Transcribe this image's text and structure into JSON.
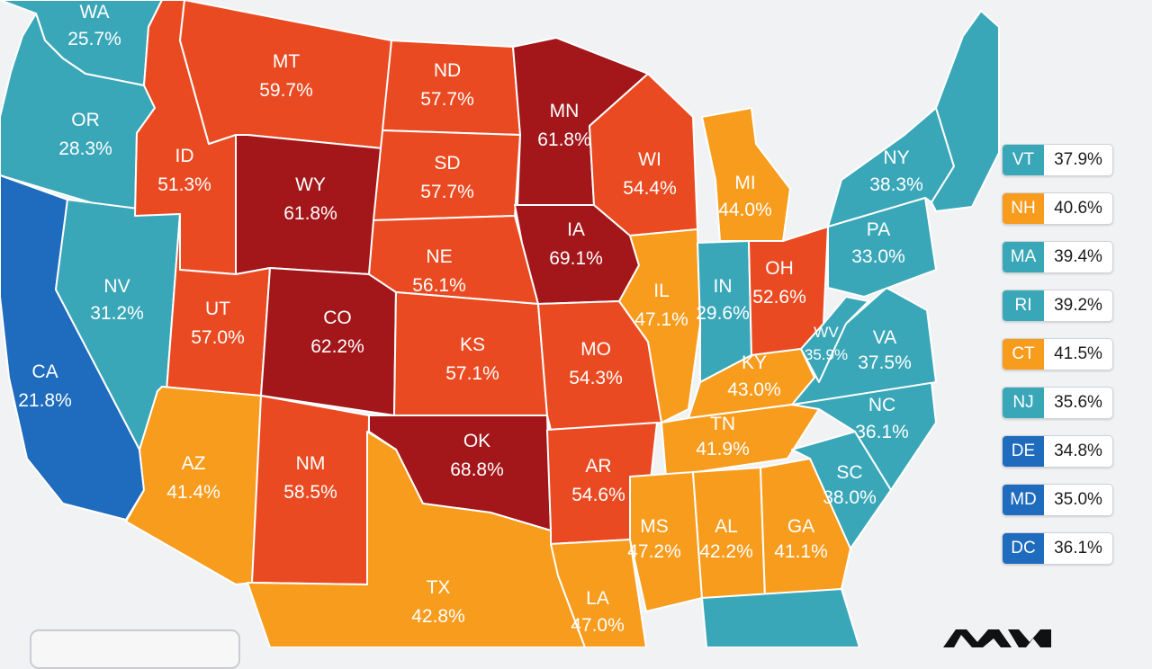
{
  "colors": {
    "dark_red": "#a3161a",
    "red_orange": "#ea4a22",
    "orange": "#f89c1e",
    "teal": "#3aa7b9",
    "blue": "#1f6bbd"
  },
  "states": [
    {
      "code": "WA",
      "value": "25.7%",
      "color": "#3aa7b9"
    },
    {
      "code": "OR",
      "value": "28.3%",
      "color": "#3aa7b9"
    },
    {
      "code": "CA",
      "value": "21.8%",
      "color": "#1f6bbd"
    },
    {
      "code": "NV",
      "value": "31.2%",
      "color": "#3aa7b9"
    },
    {
      "code": "ID",
      "value": "51.3%",
      "color": "#ea4a22"
    },
    {
      "code": "MT",
      "value": "59.7%",
      "color": "#ea4a22"
    },
    {
      "code": "WY",
      "value": "61.8%",
      "color": "#a3161a"
    },
    {
      "code": "UT",
      "value": "57.0%",
      "color": "#ea4a22"
    },
    {
      "code": "CO",
      "value": "62.2%",
      "color": "#a3161a"
    },
    {
      "code": "AZ",
      "value": "41.4%",
      "color": "#f89c1e"
    },
    {
      "code": "NM",
      "value": "58.5%",
      "color": "#ea4a22"
    },
    {
      "code": "ND",
      "value": "57.7%",
      "color": "#ea4a22"
    },
    {
      "code": "SD",
      "value": "57.7%",
      "color": "#ea4a22"
    },
    {
      "code": "NE",
      "value": "56.1%",
      "color": "#ea4a22"
    },
    {
      "code": "KS",
      "value": "57.1%",
      "color": "#ea4a22"
    },
    {
      "code": "OK",
      "value": "68.8%",
      "color": "#a3161a"
    },
    {
      "code": "TX",
      "value": "42.8%",
      "color": "#f89c1e"
    },
    {
      "code": "MN",
      "value": "61.8%",
      "color": "#a3161a"
    },
    {
      "code": "IA",
      "value": "69.1%",
      "color": "#a3161a"
    },
    {
      "code": "MO",
      "value": "54.3%",
      "color": "#ea4a22"
    },
    {
      "code": "AR",
      "value": "54.6%",
      "color": "#ea4a22"
    },
    {
      "code": "LA",
      "value": "47.0%",
      "color": "#f89c1e"
    },
    {
      "code": "WI",
      "value": "54.4%",
      "color": "#ea4a22"
    },
    {
      "code": "IL",
      "value": "47.1%",
      "color": "#f89c1e"
    },
    {
      "code": "MI",
      "value": "44.0%",
      "color": "#f89c1e"
    },
    {
      "code": "IN",
      "value": "29.6%",
      "color": "#3aa7b9"
    },
    {
      "code": "OH",
      "value": "52.6%",
      "color": "#ea4a22"
    },
    {
      "code": "KY",
      "value": "43.0%",
      "color": "#f89c1e"
    },
    {
      "code": "TN",
      "value": "41.9%",
      "color": "#f89c1e"
    },
    {
      "code": "MS",
      "value": "47.2%",
      "color": "#f89c1e"
    },
    {
      "code": "AL",
      "value": "42.2%",
      "color": "#f89c1e"
    },
    {
      "code": "GA",
      "value": "41.1%",
      "color": "#f89c1e"
    },
    {
      "code": "FL",
      "value": "",
      "color": "#3aa7b9"
    },
    {
      "code": "SC",
      "value": "38.0%",
      "color": "#3aa7b9"
    },
    {
      "code": "NC",
      "value": "36.1%",
      "color": "#3aa7b9"
    },
    {
      "code": "VA",
      "value": "37.5%",
      "color": "#3aa7b9"
    },
    {
      "code": "WV",
      "value": "35.9%",
      "color": "#3aa7b9"
    },
    {
      "code": "PA",
      "value": "33.0%",
      "color": "#3aa7b9"
    },
    {
      "code": "NY",
      "value": "38.3%",
      "color": "#3aa7b9"
    },
    {
      "code": "NE_REGION",
      "value": "",
      "color": "#3aa7b9"
    }
  ],
  "legend": [
    {
      "code": "VT",
      "value": "37.9%",
      "color": "#3aa7b9"
    },
    {
      "code": "NH",
      "value": "40.6%",
      "color": "#f89c1e"
    },
    {
      "code": "MA",
      "value": "39.4%",
      "color": "#3aa7b9"
    },
    {
      "code": "RI",
      "value": "39.2%",
      "color": "#3aa7b9"
    },
    {
      "code": "CT",
      "value": "41.5%",
      "color": "#f89c1e"
    },
    {
      "code": "NJ",
      "value": "35.6%",
      "color": "#3aa7b9"
    },
    {
      "code": "DE",
      "value": "34.8%",
      "color": "#1f6bbd"
    },
    {
      "code": "MD",
      "value": "35.0%",
      "color": "#1f6bbd"
    },
    {
      "code": "DC",
      "value": "36.1%",
      "color": "#1f6bbd"
    }
  ]
}
